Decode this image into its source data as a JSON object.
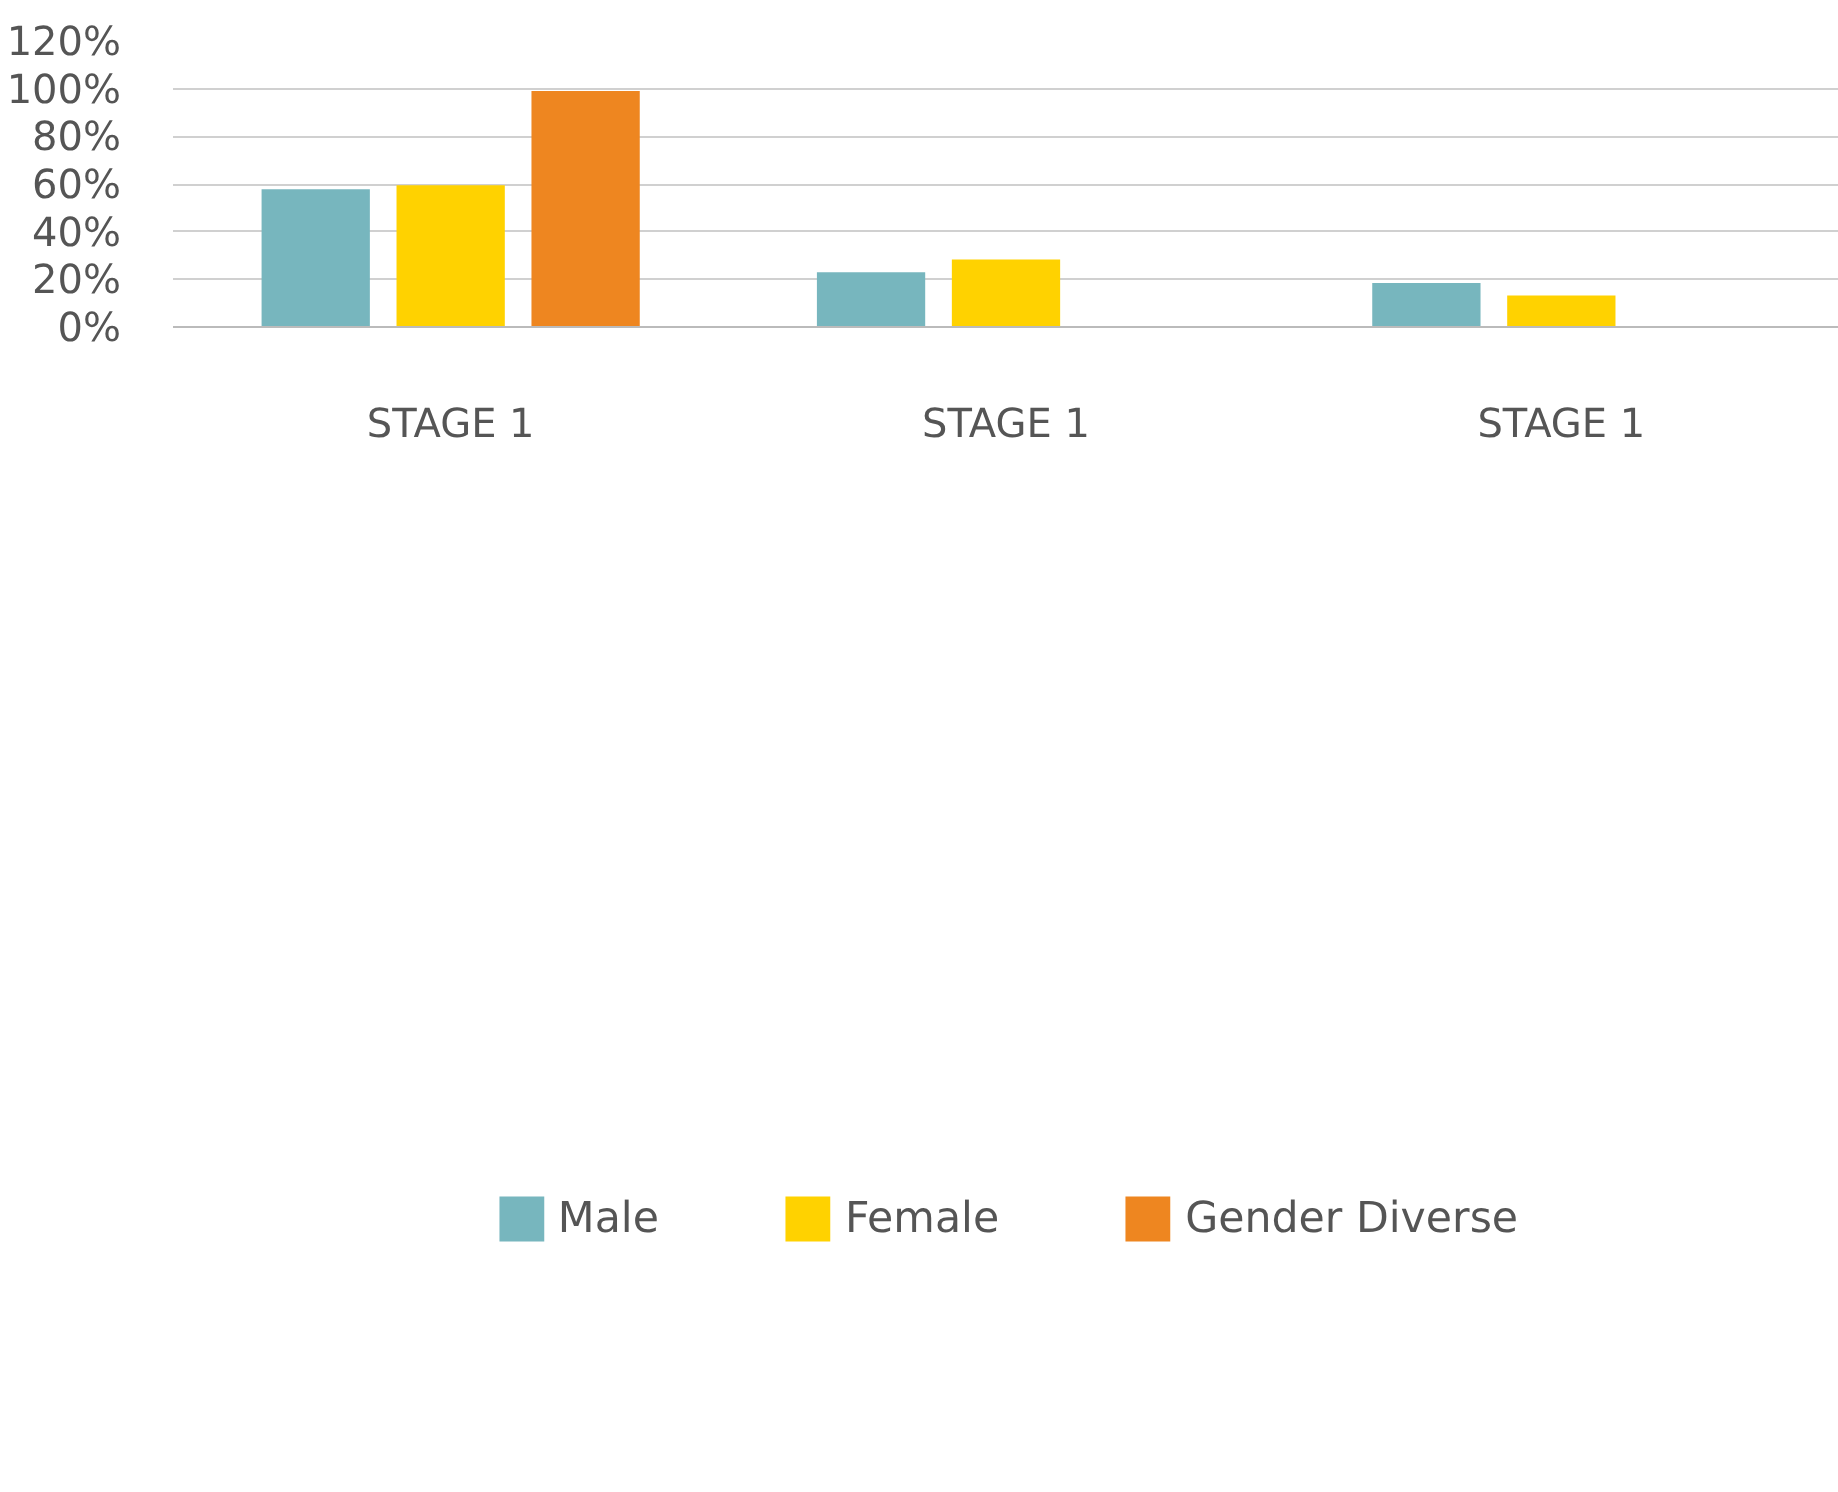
{
  "chart_data": {
    "type": "bar",
    "categories": [
      "STAGE 1",
      "STAGE 1",
      "STAGE 1"
    ],
    "series": [
      {
        "name": "Male",
        "color": "#77b6be",
        "values": [
          57.8,
          23.0,
          18.5
        ]
      },
      {
        "name": "Female",
        "color": "#ffd200",
        "values": [
          59.5,
          28.3,
          13.2
        ]
      },
      {
        "name": "Gender Diverse",
        "color": "#ee8620",
        "values": [
          99.0,
          null,
          null
        ]
      }
    ],
    "ylim": [
      0,
      120
    ],
    "yticks": [
      {
        "value": 0,
        "label": "0%"
      },
      {
        "value": 20,
        "label": "20%"
      },
      {
        "value": 40,
        "label": "40%"
      },
      {
        "value": 60,
        "label": "60%"
      },
      {
        "value": 80,
        "label": "80%"
      },
      {
        "value": 100,
        "label": "100%"
      },
      {
        "value": 120,
        "label": "120%"
      }
    ],
    "grid": "y",
    "legend": "bottom"
  }
}
